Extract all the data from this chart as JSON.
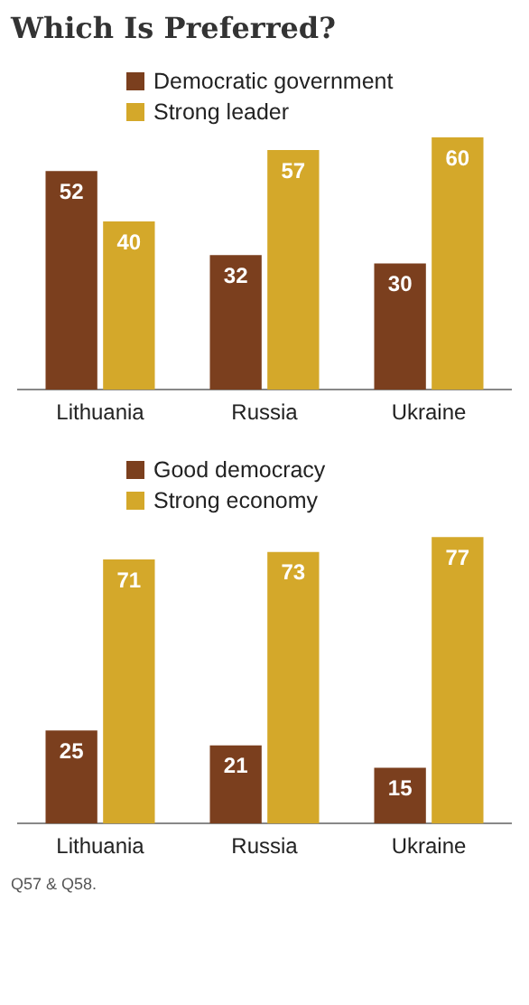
{
  "chart_data": [
    {
      "type": "bar",
      "title": "Which Is Preferred?",
      "categories": [
        "Lithuania",
        "Russia",
        "Ukraine"
      ],
      "series": [
        {
          "name": "Democratic government",
          "color": "#7b3f1e",
          "values": [
            52,
            32,
            30
          ]
        },
        {
          "name": "Strong leader",
          "color": "#d4a82a",
          "values": [
            40,
            57,
            60
          ]
        }
      ],
      "data_labels": true,
      "legend": "top left",
      "grid": false,
      "tick_labels": "x"
    },
    {
      "type": "bar",
      "categories": [
        "Lithuania",
        "Russia",
        "Ukraine"
      ],
      "series": [
        {
          "name": "Good democracy",
          "color": "#7b3f1e",
          "values": [
            25,
            21,
            15
          ]
        },
        {
          "name": "Strong economy",
          "color": "#d4a82a",
          "values": [
            71,
            73,
            77
          ]
        }
      ],
      "data_labels": true,
      "legend": "top left",
      "grid": false,
      "tick_labels": "x",
      "annotations": [
        "Q57 & Q58."
      ]
    }
  ]
}
